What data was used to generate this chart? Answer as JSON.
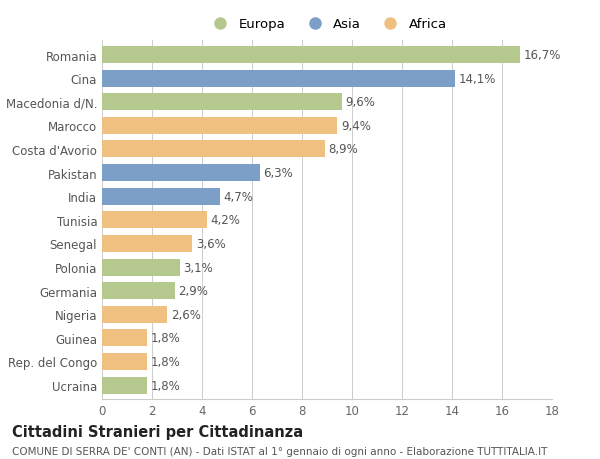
{
  "categories": [
    "Ucraina",
    "Rep. del Congo",
    "Guinea",
    "Nigeria",
    "Germania",
    "Polonia",
    "Senegal",
    "Tunisia",
    "India",
    "Pakistan",
    "Costa d'Avorio",
    "Marocco",
    "Macedonia d/N.",
    "Cina",
    "Romania"
  ],
  "values": [
    1.8,
    1.8,
    1.8,
    2.6,
    2.9,
    3.1,
    3.6,
    4.2,
    4.7,
    6.3,
    8.9,
    9.4,
    9.6,
    14.1,
    16.7
  ],
  "labels": [
    "1,8%",
    "1,8%",
    "1,8%",
    "2,6%",
    "2,9%",
    "3,1%",
    "3,6%",
    "4,2%",
    "4,7%",
    "6,3%",
    "8,9%",
    "9,4%",
    "9,6%",
    "14,1%",
    "16,7%"
  ],
  "continents": [
    "Europa",
    "Africa",
    "Africa",
    "Africa",
    "Europa",
    "Europa",
    "Africa",
    "Africa",
    "Asia",
    "Asia",
    "Africa",
    "Africa",
    "Europa",
    "Asia",
    "Europa"
  ],
  "colors": {
    "Europa": "#b5c98e",
    "Asia": "#7b9fc7",
    "Africa": "#f0c080"
  },
  "legend_order": [
    "Europa",
    "Asia",
    "Africa"
  ],
  "xlim": [
    0,
    18
  ],
  "xticks": [
    0,
    2,
    4,
    6,
    8,
    10,
    12,
    14,
    16,
    18
  ],
  "title": "Cittadini Stranieri per Cittadinanza",
  "subtitle": "COMUNE DI SERRA DE' CONTI (AN) - Dati ISTAT al 1° gennaio di ogni anno - Elaborazione TUTTITALIA.IT",
  "bg_color": "#ffffff",
  "grid_color": "#cccccc",
  "bar_height": 0.72,
  "label_fontsize": 8.5,
  "tick_fontsize": 8.5,
  "title_fontsize": 10.5,
  "subtitle_fontsize": 7.5
}
